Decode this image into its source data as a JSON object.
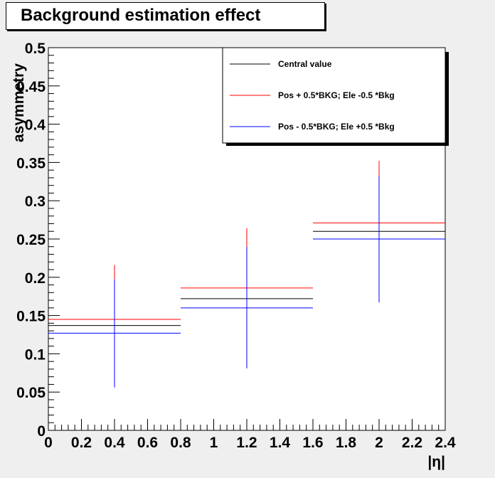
{
  "chart_data": {
    "type": "errorbar",
    "title": "Background estimation effect",
    "xlabel": "|η|",
    "ylabel": "asymmetry",
    "xlim": [
      0,
      2.4
    ],
    "ylim": [
      0,
      0.5
    ],
    "x_ticks": [
      0,
      0.2,
      0.4,
      0.6,
      0.8,
      1,
      1.2,
      1.4,
      1.6,
      1.8,
      2,
      2.2,
      2.4
    ],
    "x_tick_labels": [
      "0",
      "0.2",
      "0.4",
      "0.6",
      "0.8",
      "1",
      "1.2",
      "1.4",
      "1.6",
      "1.8",
      "2",
      "2.2",
      "2.4"
    ],
    "y_ticks": [
      0,
      0.05,
      0.1,
      0.15,
      0.2,
      0.25,
      0.3,
      0.35,
      0.4,
      0.45,
      0.5
    ],
    "y_tick_labels": [
      "0",
      "0.05",
      "0.1",
      "0.15",
      "0.2",
      "0.25",
      "0.3",
      "0.35",
      "0.4",
      "0.45",
      "0.5"
    ],
    "bins": [
      [
        0,
        0.8
      ],
      [
        0.8,
        1.6
      ],
      [
        1.6,
        2.4
      ]
    ],
    "bin_centers": [
      0.4,
      1.2,
      2.0
    ],
    "legend_position": "top-right",
    "grid": false,
    "series": [
      {
        "name": "Central value",
        "color": "#000000",
        "values": [
          0.137,
          0.172,
          0.26
        ],
        "err_low": [
          0.137,
          0.172,
          0.26
        ],
        "err_high": [
          0.137,
          0.172,
          0.26
        ]
      },
      {
        "name": "Pos + 0.5*BKG; Ele -0.5 *Bkg",
        "color": "#ff0000",
        "values": [
          0.145,
          0.186,
          0.271
        ],
        "err_low": [
          0.064,
          0.099,
          0.178
        ],
        "err_high": [
          0.216,
          0.264,
          0.352
        ]
      },
      {
        "name": "Pos - 0.5*BKG; Ele +0.5 *Bkg",
        "color": "#0000ff",
        "values": [
          0.127,
          0.16,
          0.25
        ],
        "err_low": [
          0.056,
          0.081,
          0.167
        ],
        "err_high": [
          0.197,
          0.24,
          0.332
        ]
      }
    ]
  }
}
